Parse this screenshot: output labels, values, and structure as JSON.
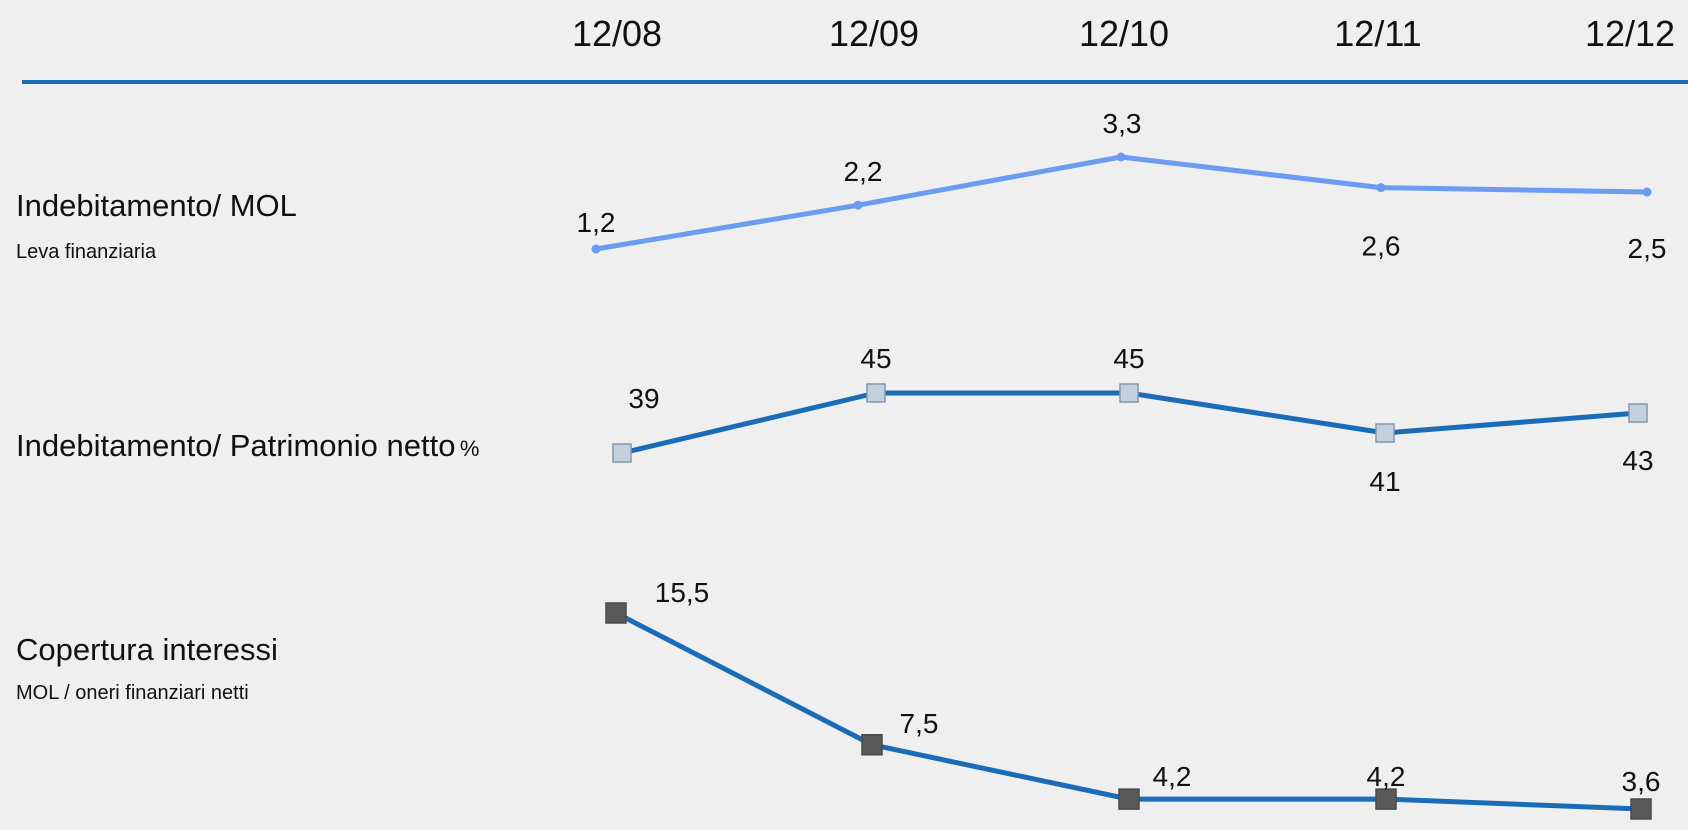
{
  "colors": {
    "background": "#efefef",
    "header_rule": "#1b6cb8",
    "series_lines": [
      "#6b9bf2",
      "#1b6cb8",
      "#1b6cb8"
    ],
    "series_markers": [
      "#6b9bf2",
      "#c4d0dd",
      "#595959"
    ]
  },
  "rows": [
    {
      "title": "Indebitamento/ MOL",
      "subtitle": "Leva finanziaria",
      "unit": ""
    },
    {
      "title": "Indebitamento/ Patrimonio netto",
      "subtitle": "",
      "unit": "%"
    },
    {
      "title": "Copertura interessi",
      "subtitle": "MOL / oneri finanziari netti",
      "unit": ""
    }
  ],
  "chart_data": {
    "type": "line",
    "categories": [
      "12/08",
      "12/09",
      "12/10",
      "12/11",
      "12/12"
    ],
    "grid": false,
    "legend": "none",
    "series": [
      {
        "values": [
          1.2,
          2.2,
          3.3,
          2.6,
          2.5
        ],
        "labels": [
          "1,2",
          "2,2",
          "3,3",
          "2,6",
          "2,5"
        ],
        "marker": "dot"
      },
      {
        "values": [
          39,
          45,
          45,
          41,
          43
        ],
        "labels": [
          "39",
          "45",
          "45",
          "41",
          "43"
        ],
        "marker": "square"
      },
      {
        "values": [
          15.5,
          7.5,
          4.2,
          4.2,
          3.6
        ],
        "labels": [
          "15,5",
          "7,5",
          "4,2",
          "4,2",
          "3,6"
        ],
        "marker": "square"
      }
    ]
  }
}
